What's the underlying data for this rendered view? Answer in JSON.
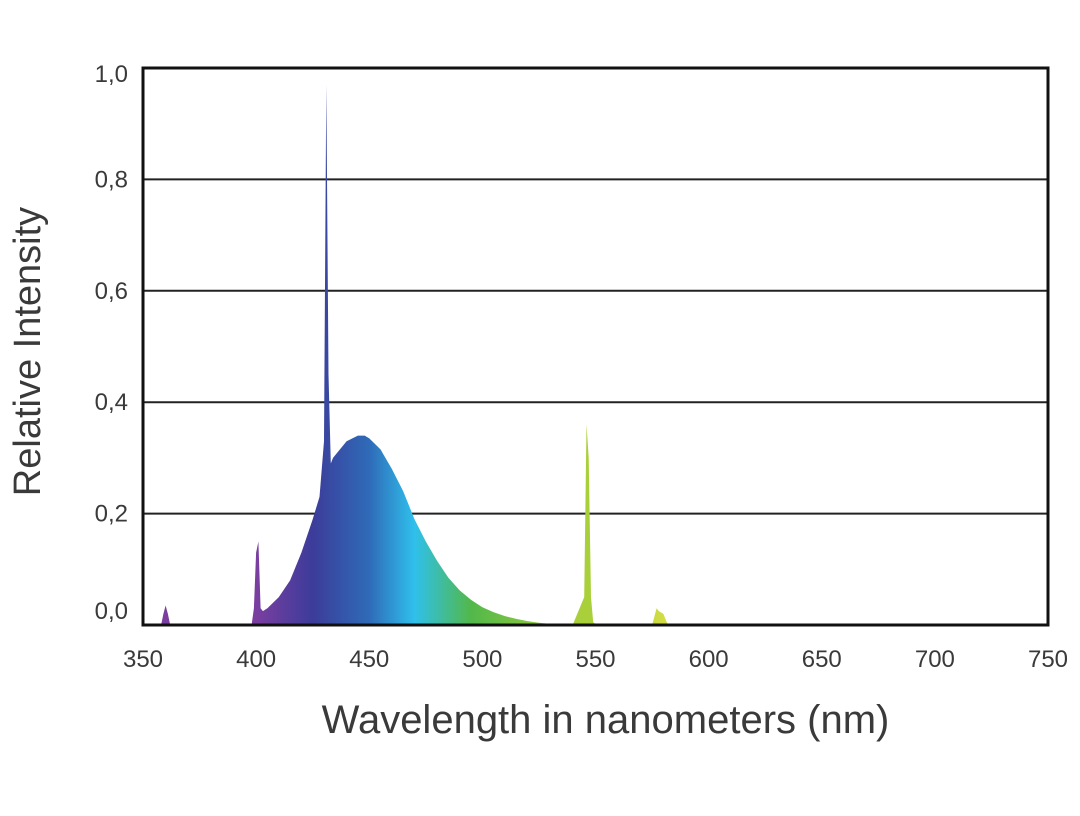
{
  "chart_data": {
    "type": "area",
    "title": "",
    "xlabel": "Wavelength in nanometers (nm)",
    "ylabel": "Relative  Intensity",
    "xlim": [
      350,
      750
    ],
    "ylim": [
      0,
      1.0
    ],
    "x_ticks": [
      350,
      400,
      450,
      500,
      550,
      600,
      650,
      700,
      750
    ],
    "x_tick_labels": [
      "350",
      "400",
      "450",
      "500",
      "550",
      "600",
      "650",
      "700",
      "750"
    ],
    "y_ticks": [
      0,
      0.2,
      0.4,
      0.6,
      0.8,
      1.0
    ],
    "y_tick_labels": [
      "0,0",
      "0,2",
      "0,4",
      "0,6",
      "0,8",
      "1,0"
    ],
    "grid": "horizontal",
    "series": [
      {
        "x": [
          350,
          358,
          359,
          360,
          361,
          362,
          398,
          399,
          400,
          401,
          402,
          403,
          405,
          410,
          415,
          420,
          425,
          428,
          430,
          431,
          432,
          433,
          434,
          436,
          440,
          445,
          448,
          450,
          455,
          460,
          465,
          470,
          475,
          480,
          485,
          490,
          495,
          500,
          505,
          510,
          515,
          520,
          525,
          530,
          535,
          540,
          545,
          546,
          547,
          548,
          549,
          550,
          555,
          560,
          575,
          577,
          578,
          580,
          582,
          590,
          750
        ],
        "y": [
          0,
          0,
          0.02,
          0.035,
          0.02,
          0,
          0,
          0.03,
          0.13,
          0.15,
          0.03,
          0.025,
          0.03,
          0.05,
          0.08,
          0.13,
          0.19,
          0.23,
          0.33,
          0.97,
          0.45,
          0.29,
          0.3,
          0.31,
          0.33,
          0.34,
          0.34,
          0.335,
          0.315,
          0.28,
          0.24,
          0.19,
          0.15,
          0.115,
          0.085,
          0.062,
          0.045,
          0.032,
          0.023,
          0.016,
          0.011,
          0.007,
          0.004,
          0.002,
          0.001,
          0.001,
          0.05,
          0.36,
          0.3,
          0.05,
          0.005,
          0.002,
          0.001,
          0,
          0,
          0.03,
          0.025,
          0.02,
          0,
          0,
          0
        ]
      }
    ],
    "colors": {
      "axis": "#111111",
      "grid": "#222222",
      "text": "#3a3a3a",
      "spectrum_violet": "#7a3ea0",
      "spectrum_indigo": "#3c3c9a",
      "spectrum_blue": "#2f6bb8",
      "spectrum_cyan": "#2fc0ec",
      "spectrum_green": "#52b84a",
      "spectrum_yellowgreen": "#a9d03a",
      "spectrum_yellow": "#e6e24a"
    }
  }
}
